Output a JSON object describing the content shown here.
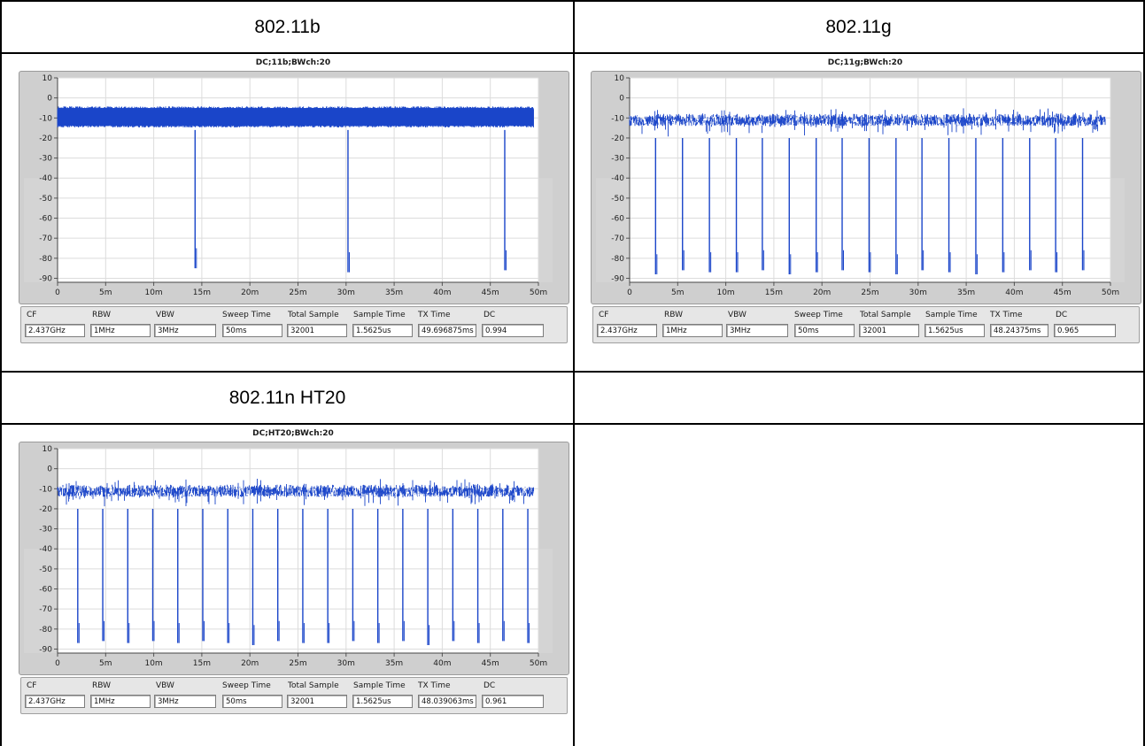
{
  "headers": {
    "b": "802.11b",
    "g": "802.11g",
    "n": "802.11n HT20",
    "empty": ""
  },
  "colors": {
    "trace": "#1a45c9",
    "plot_bg": "#ffffff",
    "frame_bg": "#cfcfcf",
    "grid": "#dcdcdc",
    "band": "#d4d4d4"
  },
  "info_labels": [
    "CF",
    "RBW",
    "VBW",
    "Sweep Time",
    "Total Sample",
    "Sample Time",
    "TX Time",
    "DC"
  ],
  "chart_data": [
    {
      "type": "line",
      "title": "DC;11b;BWch:20",
      "xlabel": "",
      "ylabel": "",
      "xlim": [
        0,
        0.05
      ],
      "ylim": [
        -92,
        10
      ],
      "y_ticks": [
        "10",
        "0",
        "-10",
        "-20",
        "-30",
        "-40",
        "-50",
        "-60",
        "-70",
        "-80",
        "-90"
      ],
      "x_ticks": [
        "0",
        "5m",
        "10m",
        "15m",
        "20m",
        "25m",
        "30m",
        "35m",
        "40m",
        "45m",
        "50m"
      ],
      "grid": true,
      "series": [
        {
          "on_level_dbm": [
            -14,
            -5
          ],
          "off_dips_s": [
            0.0143,
            0.0302,
            0.0465
          ],
          "dip_min_dbm": [
            -85,
            -87,
            -86
          ],
          "trace_span_s": [
            0,
            0.0495
          ]
        }
      ],
      "info": {
        "CF": "2.437GHz",
        "RBW": "1MHz",
        "VBW": "3MHz",
        "Sweep Time": "50ms",
        "Total Sample": "32001",
        "Sample Time": "1.5625us",
        "TX Time": "49.696875ms",
        "DC": "0.994"
      }
    },
    {
      "type": "line",
      "title": "DC;11g;BWch:20",
      "xlabel": "",
      "ylabel": "",
      "xlim": [
        0,
        0.05
      ],
      "ylim": [
        -92,
        10
      ],
      "y_ticks": [
        "10",
        "0",
        "-10",
        "-20",
        "-30",
        "-40",
        "-50",
        "-60",
        "-70",
        "-80",
        "-90"
      ],
      "x_ticks": [
        "0",
        "5m",
        "10m",
        "15m",
        "20m",
        "25m",
        "30m",
        "35m",
        "40m",
        "45m",
        "50m"
      ],
      "grid": true,
      "series": [
        {
          "on_level_dbm": [
            -18,
            -5
          ],
          "off_dips_s": [
            0.0027,
            0.0055,
            0.0083,
            0.0111,
            0.0138,
            0.0166,
            0.0194,
            0.0221,
            0.0249,
            0.0277,
            0.0304,
            0.0332,
            0.036,
            0.0388,
            0.0416,
            0.0443,
            0.0471
          ],
          "dip_min_dbm": [
            -88,
            -86,
            -87,
            -87,
            -86,
            -88,
            -87,
            -86,
            -87,
            -88,
            -86,
            -87,
            -88,
            -87,
            -86,
            -87,
            -86
          ],
          "trace_span_s": [
            0,
            0.0495
          ]
        }
      ],
      "info": {
        "CF": "2.437GHz",
        "RBW": "1MHz",
        "VBW": "3MHz",
        "Sweep Time": "50ms",
        "Total Sample": "32001",
        "Sample Time": "1.5625us",
        "TX Time": "48.24375ms",
        "DC": "0.965"
      }
    },
    {
      "type": "line",
      "title": "DC;HT20;BWch:20",
      "xlabel": "",
      "ylabel": "",
      "xlim": [
        0,
        0.05
      ],
      "ylim": [
        -92,
        10
      ],
      "y_ticks": [
        "10",
        "0",
        "-10",
        "-20",
        "-30",
        "-40",
        "-50",
        "-60",
        "-70",
        "-80",
        "-90"
      ],
      "x_ticks": [
        "0",
        "5m",
        "10m",
        "15m",
        "20m",
        "25m",
        "30m",
        "35m",
        "40m",
        "45m",
        "50m"
      ],
      "grid": true,
      "series": [
        {
          "on_level_dbm": [
            -18,
            -5
          ],
          "off_dips_s": [
            0.0021,
            0.0047,
            0.0073,
            0.0099,
            0.0125,
            0.0151,
            0.0177,
            0.0203,
            0.0229,
            0.0255,
            0.0281,
            0.0307,
            0.0333,
            0.0359,
            0.0385,
            0.0411,
            0.0437,
            0.0463,
            0.0489
          ],
          "dip_min_dbm": [
            -87,
            -86,
            -87,
            -86,
            -87,
            -86,
            -87,
            -88,
            -86,
            -87,
            -87,
            -86,
            -87,
            -86,
            -88,
            -86,
            -87,
            -86,
            -87
          ],
          "trace_span_s": [
            0,
            0.0495
          ]
        }
      ],
      "info": {
        "CF": "2.437GHz",
        "RBW": "1MHz",
        "VBW": "3MHz",
        "Sweep Time": "50ms",
        "Total Sample": "32001",
        "Sample Time": "1.5625us",
        "TX Time": "48.039063ms",
        "DC": "0.961"
      }
    }
  ]
}
